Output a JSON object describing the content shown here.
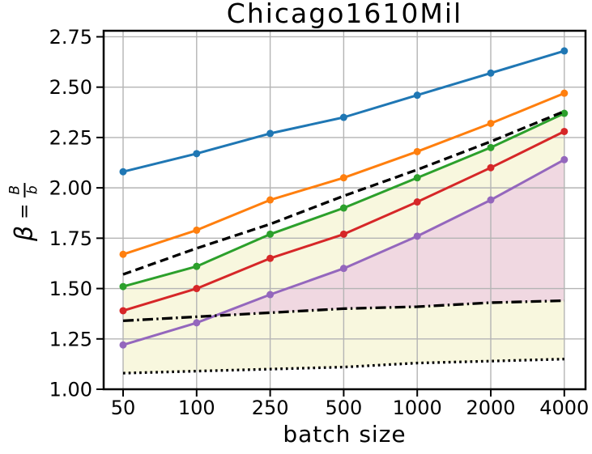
{
  "chart_data": {
    "type": "line",
    "title": "Chicago1610Mil",
    "xlabel": "batch size",
    "ylabel": "β = B/b",
    "ylabel_parts": {
      "symbol": "β",
      "equals": "=",
      "numerator": "B",
      "denominator": "b"
    },
    "categories": [
      "50",
      "100",
      "250",
      "500",
      "1000",
      "2000",
      "4000"
    ],
    "y_ticks": [
      "1.00",
      "1.25",
      "1.50",
      "1.75",
      "2.00",
      "2.25",
      "2.50",
      "2.75"
    ],
    "ylim": [
      1.0,
      2.78
    ],
    "grid": true,
    "legend_position": "none",
    "grid_color": "#b4b4b4",
    "spine_color": "#000000",
    "series": [
      {
        "name": "series-blue",
        "color": "#1f77b4",
        "style": "solid",
        "marker": "circle",
        "values": [
          2.08,
          2.17,
          2.27,
          2.35,
          2.46,
          2.57,
          2.68
        ]
      },
      {
        "name": "series-orange",
        "color": "#ff7f0e",
        "style": "solid",
        "marker": "circle",
        "values": [
          1.67,
          1.79,
          1.94,
          2.05,
          2.18,
          2.32,
          2.47
        ]
      },
      {
        "name": "series-green",
        "color": "#2ca02c",
        "style": "solid",
        "marker": "circle",
        "values": [
          1.51,
          1.61,
          1.77,
          1.9,
          2.05,
          2.2,
          2.37
        ]
      },
      {
        "name": "series-red",
        "color": "#d62728",
        "style": "solid",
        "marker": "circle",
        "values": [
          1.39,
          1.5,
          1.65,
          1.77,
          1.93,
          2.1,
          2.28
        ]
      },
      {
        "name": "series-purple",
        "color": "#9467bd",
        "style": "solid",
        "marker": "circle",
        "values": [
          1.22,
          1.33,
          1.47,
          1.6,
          1.76,
          1.94,
          2.14
        ]
      },
      {
        "name": "series-black-dashed",
        "color": "#000000",
        "style": "dashed",
        "marker": "none",
        "values": [
          1.57,
          1.7,
          1.82,
          1.96,
          2.09,
          2.23,
          2.38
        ]
      },
      {
        "name": "series-black-dashdot",
        "color": "#000000",
        "style": "dashdot",
        "marker": "none",
        "values": [
          1.34,
          1.36,
          1.38,
          1.4,
          1.41,
          1.43,
          1.44
        ]
      },
      {
        "name": "series-black-dotted",
        "color": "#000000",
        "style": "dotted",
        "marker": "none",
        "values": [
          1.08,
          1.09,
          1.1,
          1.11,
          1.13,
          1.14,
          1.15
        ]
      }
    ],
    "fills": [
      {
        "name": "fill-yellow-band",
        "color": "#f8f7de",
        "upper": "series-green",
        "lower": "series-black-dotted",
        "where": "all"
      },
      {
        "name": "fill-pink-band",
        "color": "#f0d8e1",
        "upper": "series-purple",
        "lower": "series-black-dashdot",
        "where": "upper_above_lower"
      }
    ]
  }
}
